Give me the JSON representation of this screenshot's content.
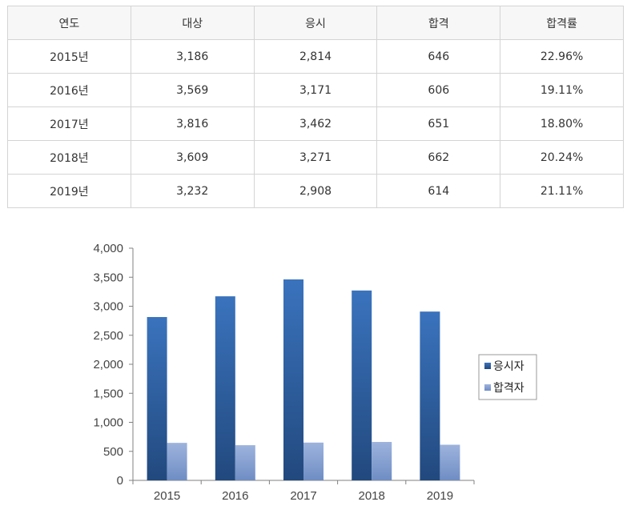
{
  "table": {
    "headers": [
      "연도",
      "대상",
      "응시",
      "합격",
      "합격률"
    ],
    "rows": [
      [
        "2015년",
        "3,186",
        "2,814",
        "646",
        "22.96%"
      ],
      [
        "2016년",
        "3,569",
        "3,171",
        "606",
        "19.11%"
      ],
      [
        "2017년",
        "3,816",
        "3,462",
        "651",
        "18.80%"
      ],
      [
        "2018년",
        "3,609",
        "3,271",
        "662",
        "20.24%"
      ],
      [
        "2019년",
        "3,232",
        "2,908",
        "614",
        "21.11%"
      ]
    ]
  },
  "chart_data": {
    "type": "bar",
    "categories": [
      "2015",
      "2016",
      "2017",
      "2018",
      "2019"
    ],
    "series": [
      {
        "name": "응시자",
        "values": [
          2814,
          3171,
          3462,
          3271,
          2908
        ],
        "color": "#2f5f9e"
      },
      {
        "name": "합격자",
        "values": [
          646,
          606,
          651,
          662,
          614
        ],
        "color": "#8aa2d0"
      }
    ],
    "ylim": [
      0,
      4000
    ],
    "yticks": [
      0,
      500,
      1000,
      1500,
      2000,
      2500,
      3000,
      3500,
      4000
    ],
    "ytick_labels": [
      "0",
      "500",
      "1,000",
      "1,500",
      "2,000",
      "2,500",
      "3,000",
      "3,500",
      "4,000"
    ],
    "title": "",
    "xlabel": "",
    "ylabel": "",
    "grid": false,
    "legend_position": "right"
  }
}
